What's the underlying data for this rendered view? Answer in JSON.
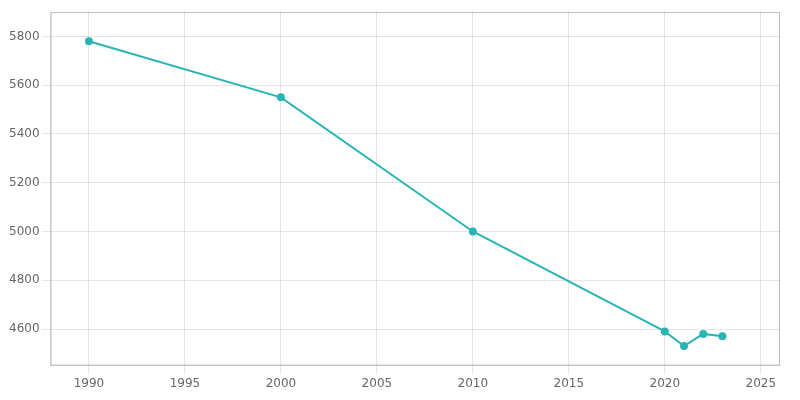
{
  "chart_data": {
    "type": "line",
    "x": [
      1990,
      2000,
      2010,
      2020,
      2021,
      2022,
      2023
    ],
    "values": [
      5780,
      5550,
      5000,
      4590,
      4530,
      4580,
      4570
    ],
    "color": "#2ab5b5",
    "marker": "circle",
    "xlim": [
      1988,
      2026
    ],
    "ylim": [
      4450,
      5900
    ],
    "xticks": [
      1990,
      1995,
      2000,
      2005,
      2010,
      2015,
      2020,
      2025
    ],
    "yticks": [
      4600,
      4800,
      5000,
      5200,
      5400,
      5600,
      5800
    ],
    "grid": true
  }
}
